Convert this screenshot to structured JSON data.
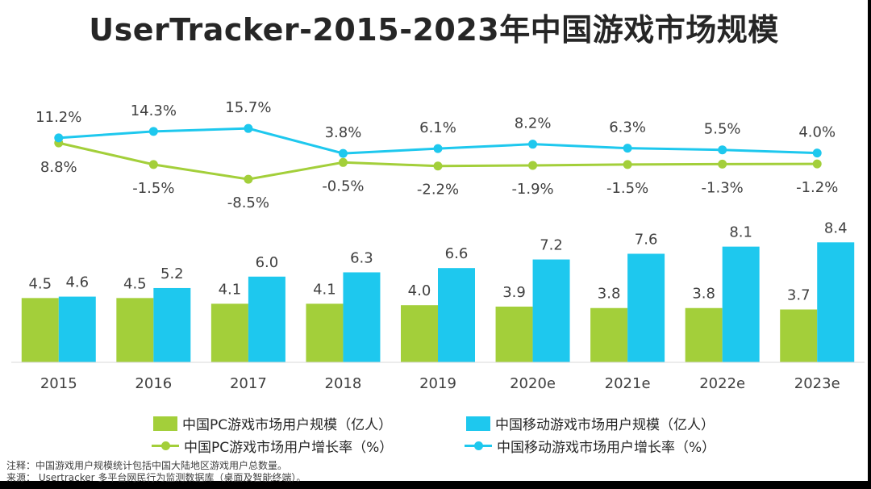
{
  "title": "UserTracker-2015-2023年中国游戏市场规模",
  "colors": {
    "pc": "#a3cf3a",
    "mobile": "#1ec8ee"
  },
  "legend": {
    "pc_bar": "中国PC游戏市场用户规模（亿人）",
    "mobile_bar": "中国移动游戏市场用户规模（亿人）",
    "pc_line": "中国PC游戏市场用户增长率（%）",
    "mobile_line": "中国移动游戏市场用户增长率（%）"
  },
  "notes": {
    "line1": "注释：中国游戏用户规模统计包括中国大陆地区游戏用户总数量。",
    "line2": "来源： Usertracker 多平台网民行为监测数据库（桌面及智能终端）。"
  },
  "chart_data": {
    "type": "bar+line",
    "categories": [
      "2015",
      "2016",
      "2017",
      "2018",
      "2019",
      "2020e",
      "2021e",
      "2022e",
      "2023e"
    ],
    "bars": [
      {
        "name": "中国PC游戏市场用户规模（亿人）",
        "values": [
          4.5,
          4.5,
          4.1,
          4.1,
          4.0,
          3.9,
          3.8,
          3.8,
          3.7
        ],
        "labels": [
          "4.5",
          "4.5",
          "4.1",
          "4.1",
          "4.0",
          "3.9",
          "3.8",
          "3.8",
          "3.7"
        ]
      },
      {
        "name": "中国移动游戏市场用户规模（亿人）",
        "values": [
          4.6,
          5.2,
          6.0,
          6.3,
          6.6,
          7.2,
          7.6,
          8.1,
          8.4
        ],
        "labels": [
          "4.6",
          "5.2",
          "6.0",
          "6.3",
          "6.6",
          "7.2",
          "7.6",
          "8.1",
          "8.4"
        ]
      }
    ],
    "lines": [
      {
        "name": "中国PC游戏市场用户增长率（%）",
        "values": [
          8.8,
          -1.5,
          -8.5,
          -0.5,
          -2.2,
          -1.9,
          -1.5,
          -1.3,
          -1.2
        ],
        "labels": [
          "8.8%",
          "-1.5%",
          "-8.5%",
          "-0.5%",
          "-2.2%",
          "-1.9%",
          "-1.5%",
          "-1.3%",
          "-1.2%"
        ]
      },
      {
        "name": "中国移动游戏市场用户增长率（%）",
        "values": [
          11.2,
          14.3,
          15.7,
          3.8,
          6.1,
          8.2,
          6.3,
          5.5,
          4.0
        ],
        "labels": [
          "11.2%",
          "14.3%",
          "15.7%",
          "3.8%",
          "6.1%",
          "8.2%",
          "6.3%",
          "5.5%",
          "4.0%"
        ]
      }
    ],
    "legend_position": "bottom"
  }
}
